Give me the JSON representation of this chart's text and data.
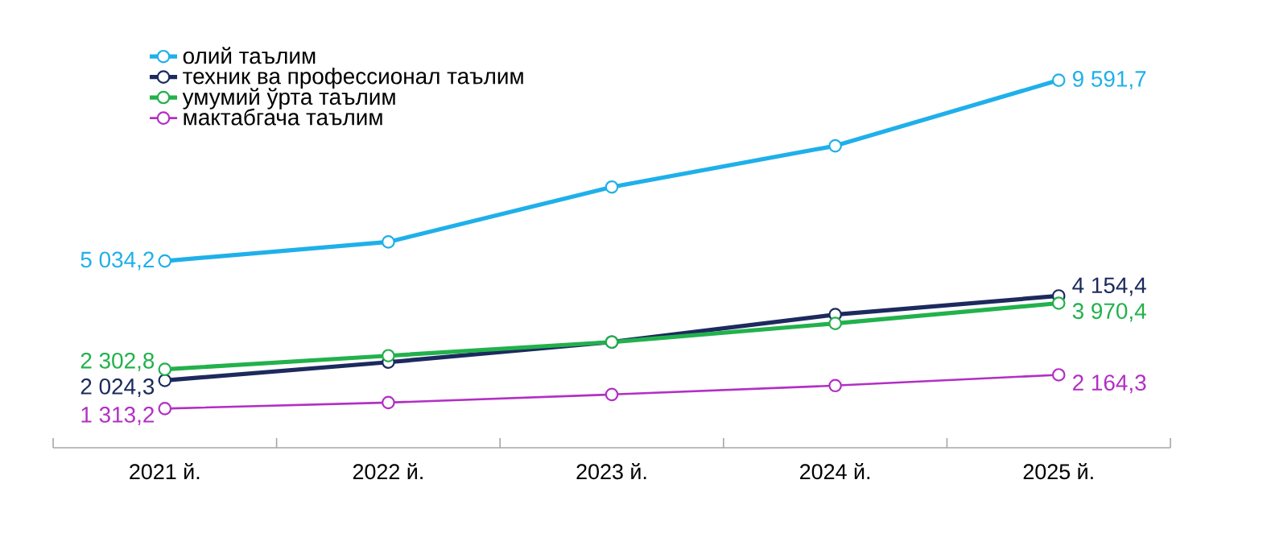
{
  "chart_data": {
    "type": "line",
    "categories": [
      "2021 й.",
      "2022 й.",
      "2023 й.",
      "2024 й.",
      "2025 й."
    ],
    "tick_labels": "x",
    "legend": "top left",
    "marker": "circle",
    "line_style": "solid",
    "grid": false,
    "series": [
      {
        "name": "олий таълим",
        "color": "#1fb0ea",
        "values": [
          5034.2,
          5515,
          6899,
          7937,
          9591.7
        ],
        "value_labels": [
          "5 034,2",
          null,
          null,
          null,
          "9 591,7"
        ]
      },
      {
        "name": "техник ва профессионал таълим",
        "color": "#1c2a5e",
        "values": [
          2024.3,
          2483,
          2991,
          3683,
          4154.4
        ],
        "value_labels": [
          "2 024,3",
          null,
          null,
          null,
          "4 154,4"
        ]
      },
      {
        "name": "умумий ўрта таълим",
        "color": "#22b14c",
        "values": [
          2302.8,
          2646,
          2991,
          3460,
          3970.4
        ],
        "value_labels": [
          "2 302,8",
          null,
          null,
          null,
          "3 970,4"
        ]
      },
      {
        "name": "мактабгача таълим",
        "color": "#b22fc4",
        "values": [
          1313.2,
          1465,
          1669,
          1893,
          2164.3
        ],
        "value_labels": [
          "1 313,2",
          null,
          null,
          null,
          "2 164,3"
        ]
      }
    ]
  }
}
